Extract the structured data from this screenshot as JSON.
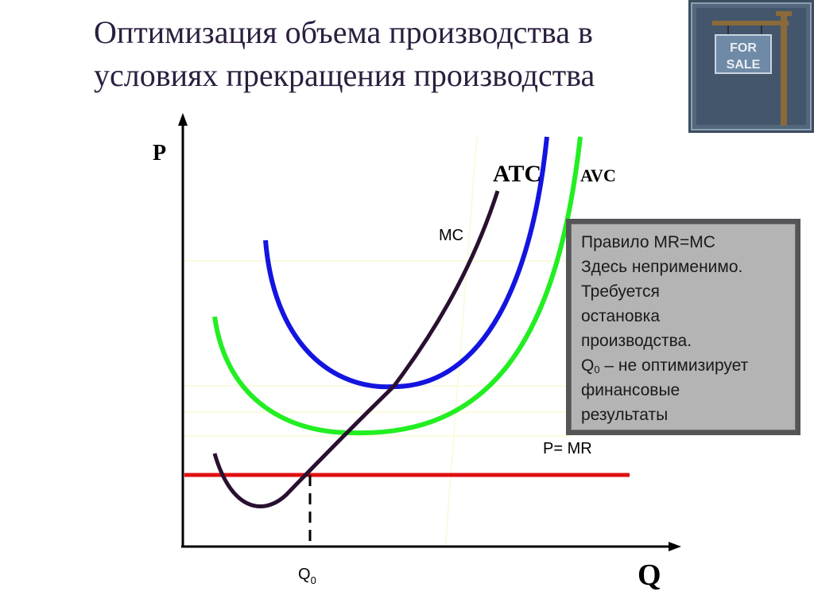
{
  "title": {
    "line1": "Оптимизация объема производства в",
    "line2": "условиях прекращения производства"
  },
  "clipart": {
    "icon": "for-sale-sign-icon",
    "sign_line1": "FOR",
    "sign_line2": "SALE"
  },
  "diagram": {
    "y_axis_label": "P",
    "x_axis_label": "Q",
    "curve_labels": {
      "atc": "ATC",
      "avc": "AVC",
      "mc": "MC",
      "price": "P= MR"
    },
    "q0_label": "Q",
    "q0_sub": "0",
    "colors": {
      "atc": "#1414e0",
      "avc": "#22ee22",
      "mc": "#2a1030",
      "price": "#e01010",
      "axes": "#000000"
    }
  },
  "infobox": {
    "line1": "Правило MR=MC",
    "line2": "Здесь неприменимо.",
    "line3": "Требуется",
    "line4": "остановка",
    "line5": "производства.",
    "line6_prefix": "Q",
    "line6_sub": "0",
    "line6_suffix": " – не оптимизирует",
    "line7": "финансовые",
    "line8": "результаты"
  }
}
